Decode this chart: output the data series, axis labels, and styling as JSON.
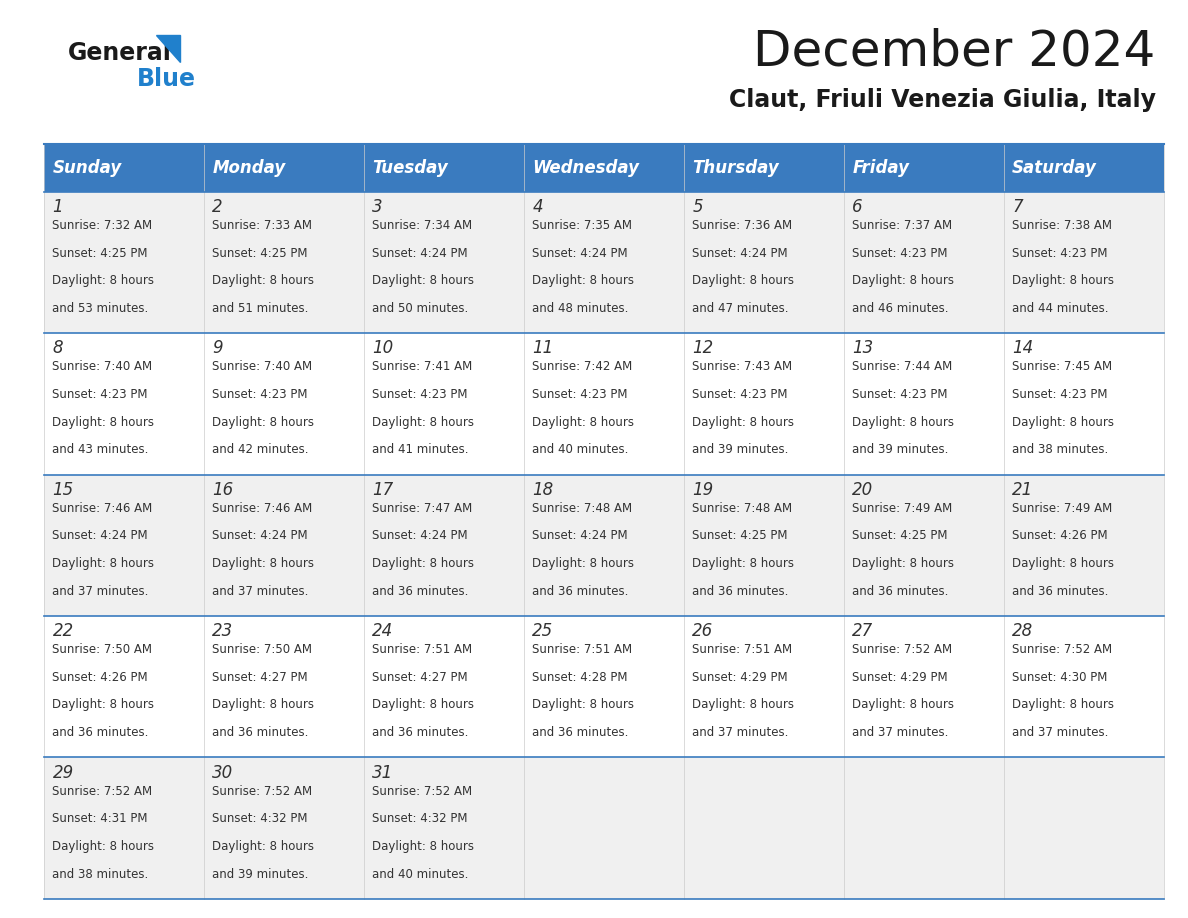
{
  "title": "December 2024",
  "subtitle": "Claut, Friuli Venezia Giulia, Italy",
  "header_bg": "#3a7bbf",
  "header_text_color": "#ffffff",
  "cell_bg_odd": "#f0f0f0",
  "cell_bg_even": "#ffffff",
  "border_color": "#3a7bbf",
  "days_of_week": [
    "Sunday",
    "Monday",
    "Tuesday",
    "Wednesday",
    "Thursday",
    "Friday",
    "Saturday"
  ],
  "weeks": [
    [
      {
        "day": 1,
        "sunrise": "7:32 AM",
        "sunset": "4:25 PM",
        "daylight": "8 hours and 53 minutes."
      },
      {
        "day": 2,
        "sunrise": "7:33 AM",
        "sunset": "4:25 PM",
        "daylight": "8 hours and 51 minutes."
      },
      {
        "day": 3,
        "sunrise": "7:34 AM",
        "sunset": "4:24 PM",
        "daylight": "8 hours and 50 minutes."
      },
      {
        "day": 4,
        "sunrise": "7:35 AM",
        "sunset": "4:24 PM",
        "daylight": "8 hours and 48 minutes."
      },
      {
        "day": 5,
        "sunrise": "7:36 AM",
        "sunset": "4:24 PM",
        "daylight": "8 hours and 47 minutes."
      },
      {
        "day": 6,
        "sunrise": "7:37 AM",
        "sunset": "4:23 PM",
        "daylight": "8 hours and 46 minutes."
      },
      {
        "day": 7,
        "sunrise": "7:38 AM",
        "sunset": "4:23 PM",
        "daylight": "8 hours and 44 minutes."
      }
    ],
    [
      {
        "day": 8,
        "sunrise": "7:40 AM",
        "sunset": "4:23 PM",
        "daylight": "8 hours and 43 minutes."
      },
      {
        "day": 9,
        "sunrise": "7:40 AM",
        "sunset": "4:23 PM",
        "daylight": "8 hours and 42 minutes."
      },
      {
        "day": 10,
        "sunrise": "7:41 AM",
        "sunset": "4:23 PM",
        "daylight": "8 hours and 41 minutes."
      },
      {
        "day": 11,
        "sunrise": "7:42 AM",
        "sunset": "4:23 PM",
        "daylight": "8 hours and 40 minutes."
      },
      {
        "day": 12,
        "sunrise": "7:43 AM",
        "sunset": "4:23 PM",
        "daylight": "8 hours and 39 minutes."
      },
      {
        "day": 13,
        "sunrise": "7:44 AM",
        "sunset": "4:23 PM",
        "daylight": "8 hours and 39 minutes."
      },
      {
        "day": 14,
        "sunrise": "7:45 AM",
        "sunset": "4:23 PM",
        "daylight": "8 hours and 38 minutes."
      }
    ],
    [
      {
        "day": 15,
        "sunrise": "7:46 AM",
        "sunset": "4:24 PM",
        "daylight": "8 hours and 37 minutes."
      },
      {
        "day": 16,
        "sunrise": "7:46 AM",
        "sunset": "4:24 PM",
        "daylight": "8 hours and 37 minutes."
      },
      {
        "day": 17,
        "sunrise": "7:47 AM",
        "sunset": "4:24 PM",
        "daylight": "8 hours and 36 minutes."
      },
      {
        "day": 18,
        "sunrise": "7:48 AM",
        "sunset": "4:24 PM",
        "daylight": "8 hours and 36 minutes."
      },
      {
        "day": 19,
        "sunrise": "7:48 AM",
        "sunset": "4:25 PM",
        "daylight": "8 hours and 36 minutes."
      },
      {
        "day": 20,
        "sunrise": "7:49 AM",
        "sunset": "4:25 PM",
        "daylight": "8 hours and 36 minutes."
      },
      {
        "day": 21,
        "sunrise": "7:49 AM",
        "sunset": "4:26 PM",
        "daylight": "8 hours and 36 minutes."
      }
    ],
    [
      {
        "day": 22,
        "sunrise": "7:50 AM",
        "sunset": "4:26 PM",
        "daylight": "8 hours and 36 minutes."
      },
      {
        "day": 23,
        "sunrise": "7:50 AM",
        "sunset": "4:27 PM",
        "daylight": "8 hours and 36 minutes."
      },
      {
        "day": 24,
        "sunrise": "7:51 AM",
        "sunset": "4:27 PM",
        "daylight": "8 hours and 36 minutes."
      },
      {
        "day": 25,
        "sunrise": "7:51 AM",
        "sunset": "4:28 PM",
        "daylight": "8 hours and 36 minutes."
      },
      {
        "day": 26,
        "sunrise": "7:51 AM",
        "sunset": "4:29 PM",
        "daylight": "8 hours and 37 minutes."
      },
      {
        "day": 27,
        "sunrise": "7:52 AM",
        "sunset": "4:29 PM",
        "daylight": "8 hours and 37 minutes."
      },
      {
        "day": 28,
        "sunrise": "7:52 AM",
        "sunset": "4:30 PM",
        "daylight": "8 hours and 37 minutes."
      }
    ],
    [
      {
        "day": 29,
        "sunrise": "7:52 AM",
        "sunset": "4:31 PM",
        "daylight": "8 hours and 38 minutes."
      },
      {
        "day": 30,
        "sunrise": "7:52 AM",
        "sunset": "4:32 PM",
        "daylight": "8 hours and 39 minutes."
      },
      {
        "day": 31,
        "sunrise": "7:52 AM",
        "sunset": "4:32 PM",
        "daylight": "8 hours and 40 minutes."
      },
      null,
      null,
      null,
      null
    ]
  ],
  "logo_color_general": "#1a1a1a",
  "logo_color_blue": "#2080cc",
  "logo_triangle_color": "#2080cc",
  "title_fontsize": 36,
  "subtitle_fontsize": 17,
  "header_fontsize": 12,
  "day_number_fontsize": 12,
  "cell_text_fontsize": 8.5
}
